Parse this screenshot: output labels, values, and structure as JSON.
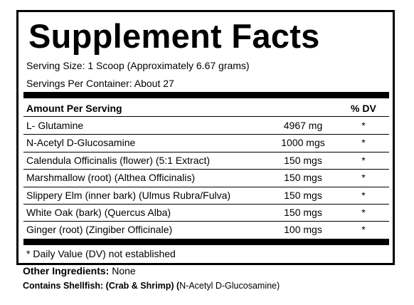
{
  "header": {
    "title": "Supplement Facts",
    "serving_size": "Serving Size:  1 Scoop (Approximately 6.67 grams)",
    "servings_per_container": "Servings Per Container: About 27"
  },
  "table": {
    "columns": [
      "Amount Per Serving",
      "% DV"
    ],
    "rows": [
      [
        "L- Glutamine",
        "4967 mg",
        "*"
      ],
      [
        "N-Acetyl D-Glucosamine",
        "1000 mgs",
        "*"
      ],
      [
        "Calendula Officinalis (flower) (5:1 Extract)",
        "150 mgs",
        "*"
      ],
      [
        "Marshmallow (root) (Althea Officinalis)",
        "150 mgs",
        "*"
      ],
      [
        "Slippery Elm (inner bark) (Ulmus Rubra/Fulva)",
        "150 mgs",
        "*"
      ],
      [
        "White Oak (bark) (Quercus Alba)",
        "150 mgs",
        "*"
      ],
      [
        "Ginger (root) (Zingiber Officinale)",
        "100 mgs",
        "*"
      ]
    ]
  },
  "footnote": "* Daily Value (DV) not established",
  "other_ingredients": {
    "label": "Other Ingredients:",
    "value": "None"
  },
  "allergen": {
    "label": "Contains Shellfish: (Crab & Shrimp) (",
    "value": "N-Acetyl D-Glucosamine)"
  }
}
